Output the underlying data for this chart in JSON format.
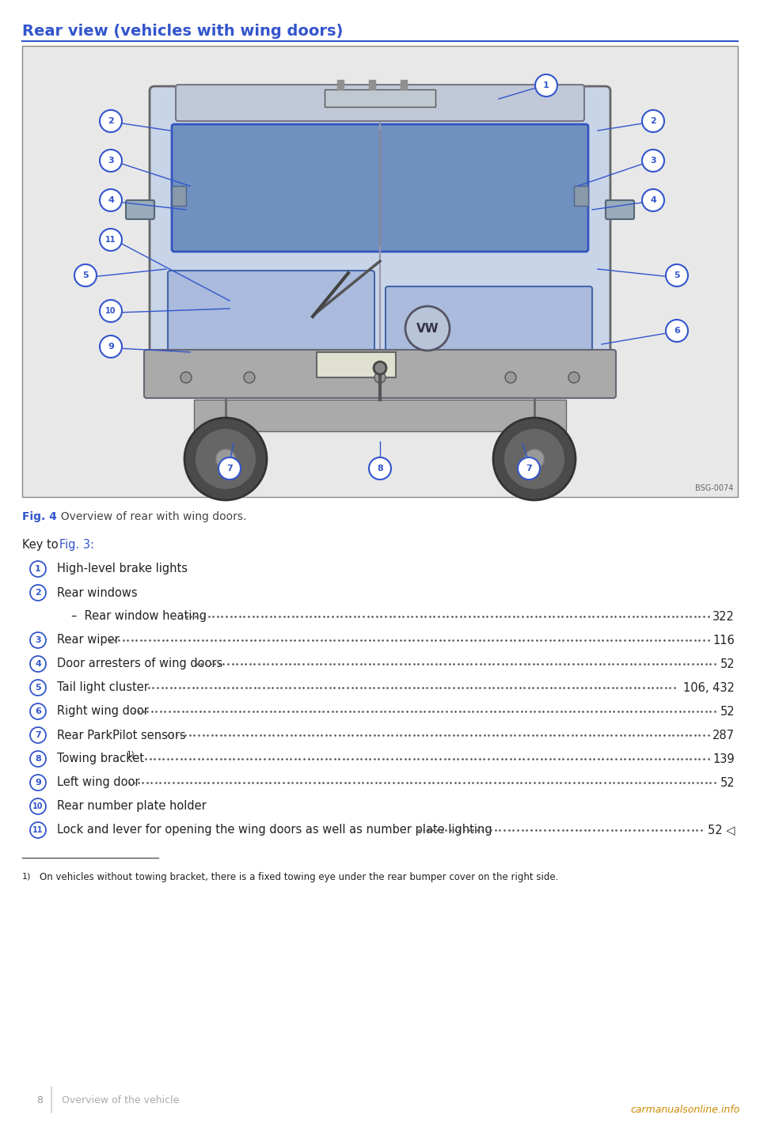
{
  "title": "Rear view (vehicles with wing doors)",
  "title_color": "#3355cc",
  "title_fontsize": 14,
  "bg_color": "#ffffff",
  "fig_caption_bold": "Fig. 4",
  "fig_caption_rest": "  Overview of rear with wing doors.",
  "fig_caption_color": "#3355cc",
  "fig_caption_rest_color": "#444444",
  "key_intro": "Key to ",
  "key_fig_ref": "Fig. 3:",
  "key_fig_ref_color": "#3355cc",
  "items": [
    {
      "num": "1",
      "text": "High-level brake lights",
      "page": "",
      "has_dots": false,
      "indent": false
    },
    {
      "num": "2",
      "text": "Rear windows",
      "page": "",
      "has_dots": false,
      "indent": false
    },
    {
      "num": "",
      "text": "–  Rear window heating",
      "page": "322",
      "has_dots": true,
      "indent": true
    },
    {
      "num": "3",
      "text": "Rear wiper",
      "page": "116",
      "has_dots": true,
      "indent": false
    },
    {
      "num": "4",
      "text": "Door arresters of wing doors",
      "page": "52",
      "has_dots": true,
      "indent": false
    },
    {
      "num": "5",
      "text": "Tail light cluster",
      "page": "106, 432",
      "has_dots": true,
      "indent": false
    },
    {
      "num": "6",
      "text": "Right wing door",
      "page": "52",
      "has_dots": true,
      "indent": false
    },
    {
      "num": "7",
      "text": "Rear ParkPilot sensors",
      "page": "287",
      "has_dots": true,
      "indent": false
    },
    {
      "num": "8",
      "text": "Towing bracket",
      "page": "139",
      "has_dots": true,
      "indent": false,
      "superscript": true
    },
    {
      "num": "9",
      "text": "Left wing door",
      "page": "52",
      "has_dots": true,
      "indent": false
    },
    {
      "num": "10",
      "text": "Rear number plate holder",
      "page": "",
      "has_dots": false,
      "indent": false
    },
    {
      "num": "11",
      "text": "Lock and lever for opening the wing doors as well as number plate lighting",
      "page": "52 ◁",
      "has_dots": true,
      "indent": false
    }
  ],
  "footnote_superscript": "1)",
  "footnote_text": "On vehicles without towing bracket, there is a fixed towing eye under the rear bumper cover on the right side.",
  "page_num": "8",
  "page_section": "Overview of the vehicle",
  "watermark": "carmanualsonline.info",
  "img_code": "BSG-0074",
  "circle_color": "#3355cc",
  "text_color": "#222222",
  "van_body_color": "#c8d4e8",
  "van_body_dark": "#b0bdd8",
  "van_outline": "#666666",
  "window_color": "#7090c0",
  "window_dark": "#5070a0",
  "wheel_dark": "#444444",
  "wheel_mid": "#666666",
  "bumper_color": "#aaaaaa",
  "roof_color": "#888899"
}
